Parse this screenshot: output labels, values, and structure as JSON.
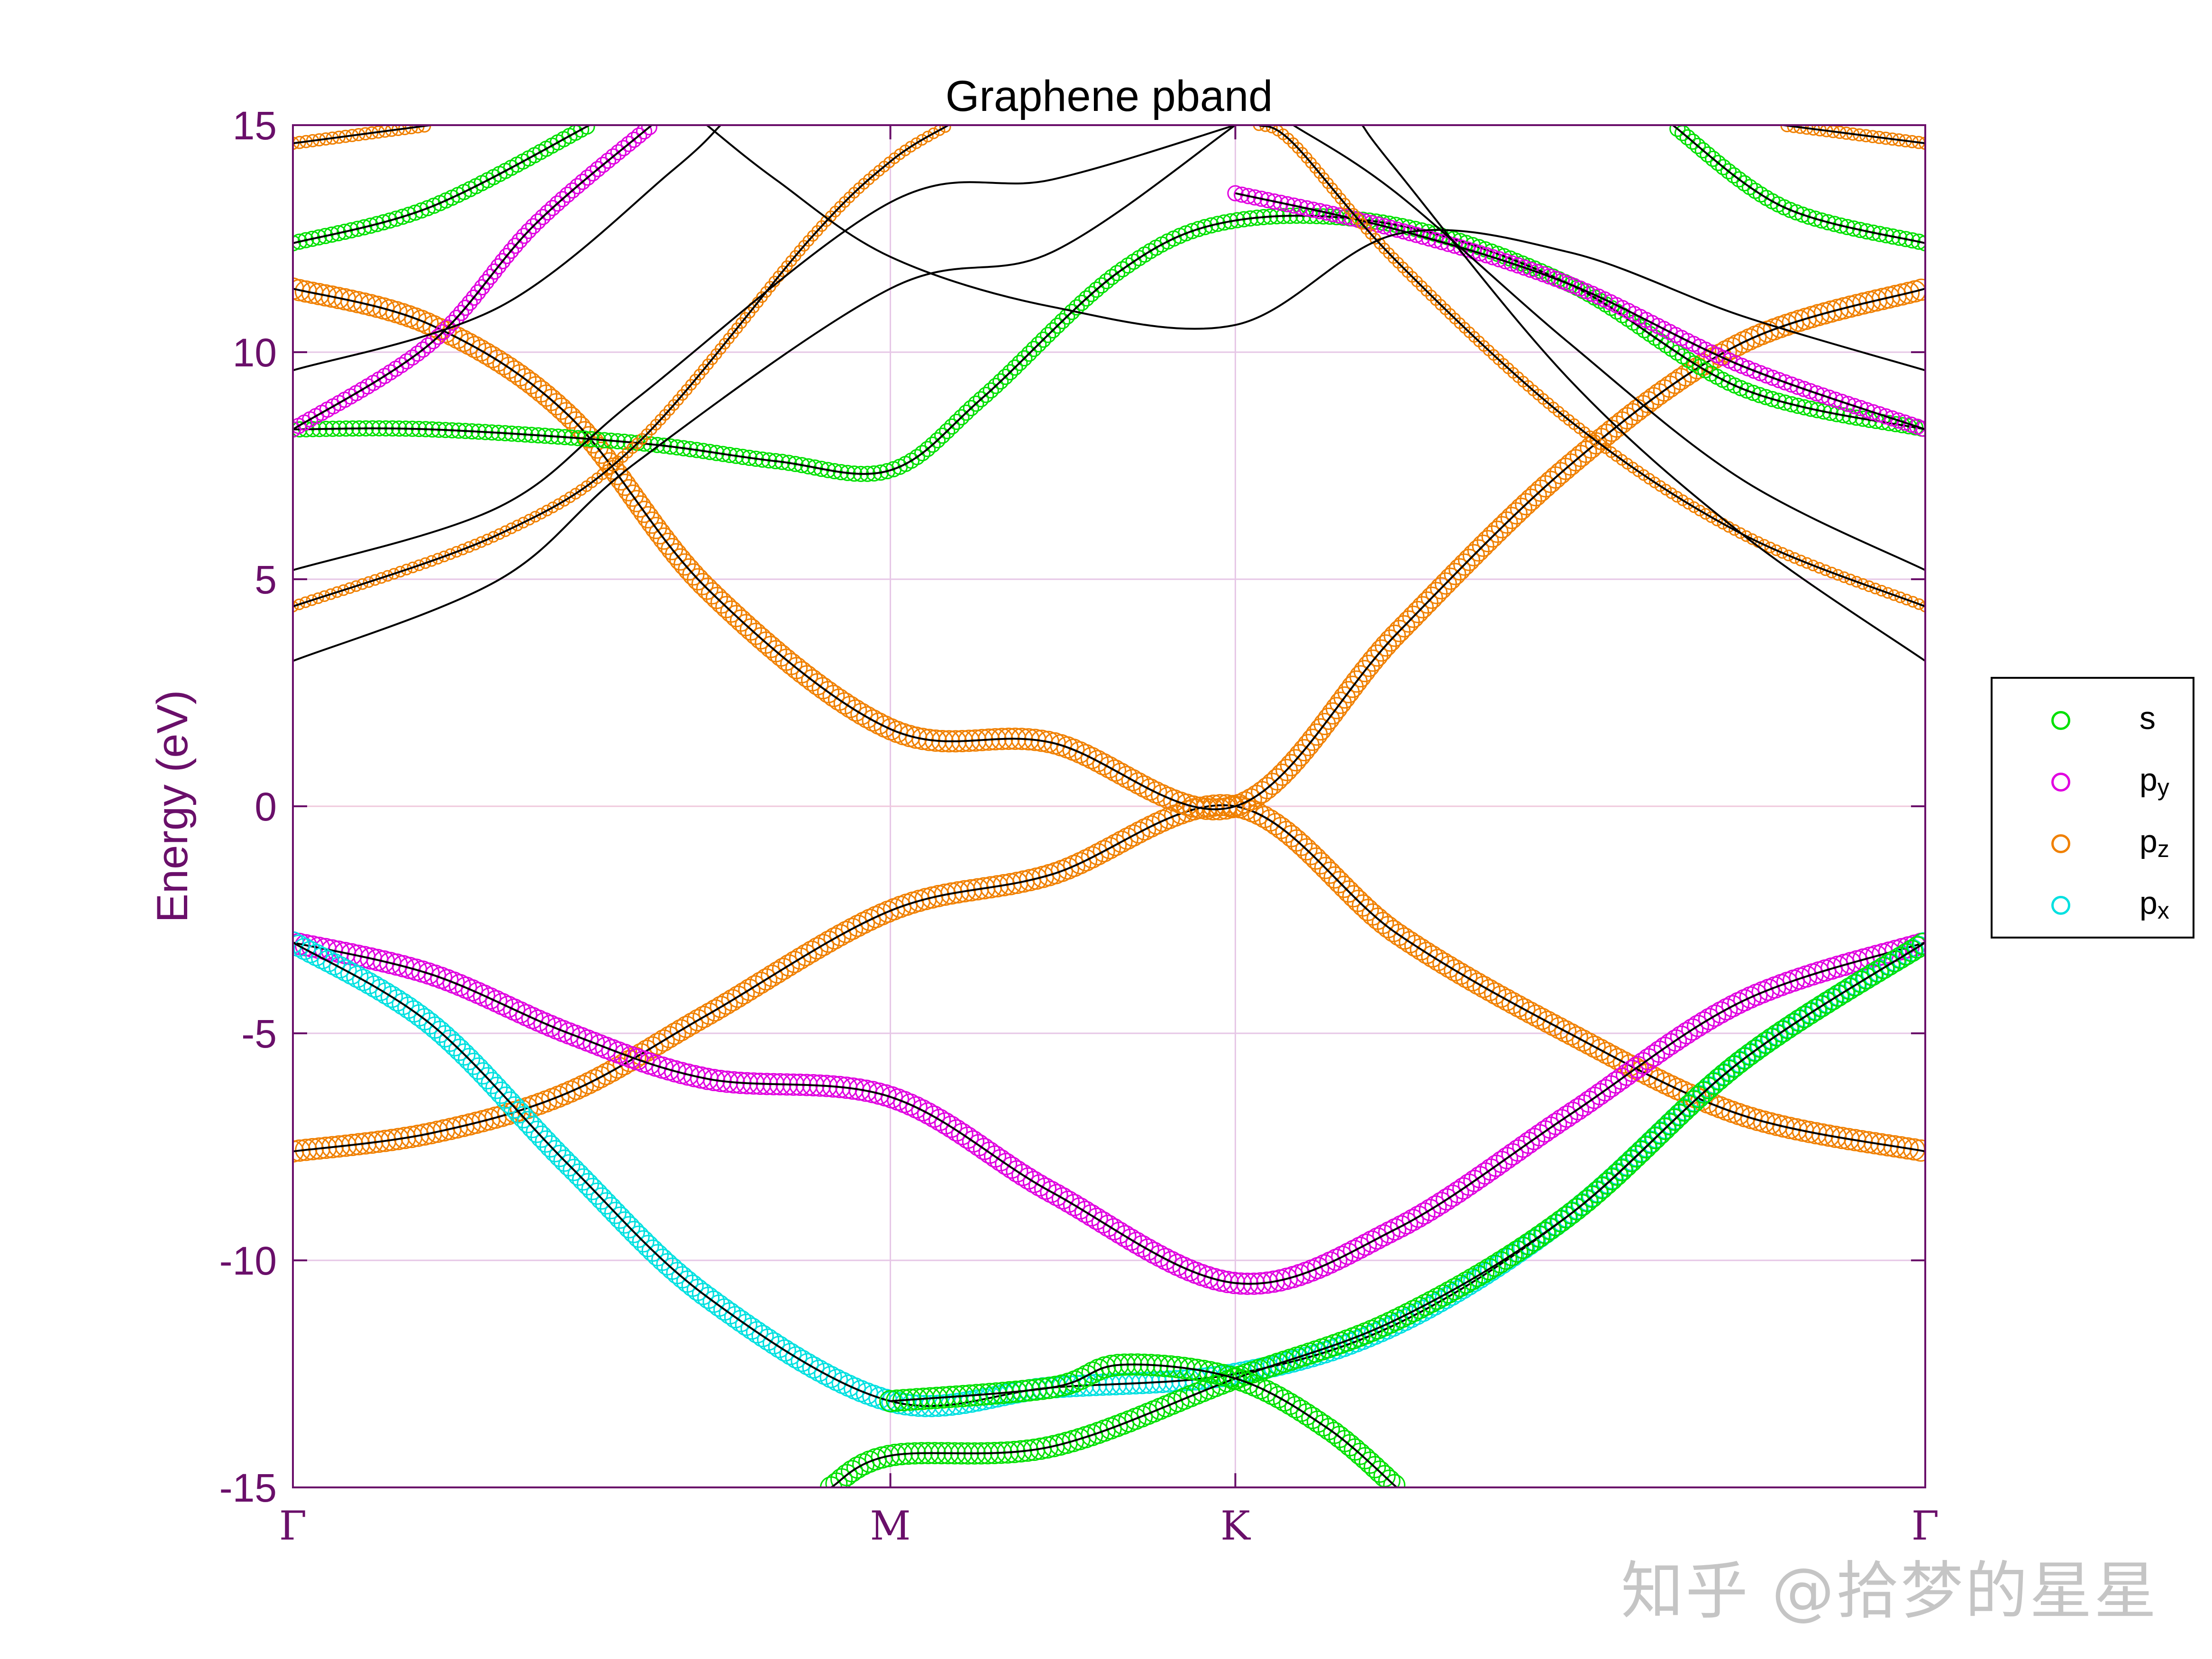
{
  "chart_data": {
    "type": "line",
    "title": "Graphene pband",
    "xlabel": "",
    "ylabel": "Energy (eV)",
    "ylim": [
      -15,
      15
    ],
    "yticks": [
      -15,
      -10,
      -5,
      0,
      5,
      10,
      15
    ],
    "xticks": [
      {
        "label": "Γ",
        "x": 0
      },
      {
        "label": "M",
        "x": 0.866
      },
      {
        "label": "K",
        "x": 1.366
      },
      {
        "label": "Γ",
        "x": 2.366
      }
    ],
    "xlim": [
      0,
      2.366
    ],
    "grid": true,
    "legend_position": "outside-right",
    "colors": {
      "axis": "#6a0f6a",
      "band": "#000000",
      "grid": "#e6c6e6",
      "zero_line": "#f0c8dc"
    },
    "series": [
      {
        "name": "s",
        "color": "#00e000"
      },
      {
        "name": "p",
        "subscript": "y",
        "color": "#e000e0"
      },
      {
        "name": "p",
        "subscript": "z",
        "color": "#f08000"
      },
      {
        "name": "p",
        "subscript": "x",
        "color": "#00e0e0"
      }
    ],
    "bands": [
      {
        "orbital": "p_z",
        "width": 1.0,
        "points": [
          [
            0,
            -7.6
          ],
          [
            0.2,
            -7.2
          ],
          [
            0.4,
            -6.3
          ],
          [
            0.6,
            -4.6
          ],
          [
            0.866,
            -2.3
          ],
          [
            1.1,
            -1.5
          ],
          [
            1.366,
            0.0
          ],
          [
            1.6,
            -2.8
          ],
          [
            1.85,
            -5.0
          ],
          [
            2.1,
            -6.8
          ],
          [
            2.366,
            -7.6
          ]
        ]
      },
      {
        "orbital": "p_z",
        "width": 1.0,
        "points": [
          [
            0,
            11.4
          ],
          [
            0.2,
            10.6
          ],
          [
            0.4,
            8.6
          ],
          [
            0.6,
            4.8
          ],
          [
            0.866,
            1.7
          ],
          [
            1.1,
            1.4
          ],
          [
            1.366,
            0.0
          ],
          [
            1.6,
            3.8
          ],
          [
            1.85,
            7.5
          ],
          [
            2.1,
            10.2
          ],
          [
            2.366,
            11.4
          ]
        ]
      },
      {
        "orbital": "p_y",
        "width": 1.0,
        "points": [
          [
            0,
            -3.0
          ],
          [
            0.2,
            -3.7
          ],
          [
            0.4,
            -5.0
          ],
          [
            0.6,
            -6.0
          ],
          [
            0.866,
            -6.4
          ],
          [
            1.1,
            -8.5
          ],
          [
            1.366,
            -10.5
          ],
          [
            1.6,
            -9.3
          ],
          [
            1.85,
            -6.8
          ],
          [
            2.1,
            -4.3
          ],
          [
            2.366,
            -3.0
          ]
        ]
      },
      {
        "orbital": "p_x",
        "width": 1.0,
        "points": [
          [
            0,
            -3.0
          ],
          [
            0.2,
            -4.8
          ],
          [
            0.4,
            -7.9
          ],
          [
            0.6,
            -10.8
          ],
          [
            0.866,
            -13.1
          ],
          [
            1.1,
            -12.8
          ],
          [
            1.366,
            -12.5
          ],
          [
            1.6,
            -11.4
          ],
          [
            1.85,
            -9.0
          ],
          [
            2.1,
            -5.6
          ],
          [
            2.366,
            -3.0
          ]
        ]
      },
      {
        "orbital": "s",
        "width": 1.0,
        "points": [
          [
            0.78,
            -15.0
          ],
          [
            0.866,
            -14.3
          ],
          [
            1.1,
            -14.1
          ],
          [
            1.366,
            -12.6
          ],
          [
            1.6,
            -11.3
          ],
          [
            1.85,
            -9.0
          ],
          [
            2.1,
            -5.6
          ],
          [
            2.366,
            -3.0
          ]
        ]
      },
      {
        "orbital": "s",
        "width": 1.0,
        "points": [
          [
            0.866,
            -13.1
          ],
          [
            1.1,
            -12.8
          ],
          [
            1.2,
            -12.3
          ],
          [
            1.366,
            -12.6
          ],
          [
            1.5,
            -13.7
          ],
          [
            1.6,
            -15.0
          ]
        ]
      },
      {
        "orbital": "s",
        "width": 0.6,
        "points": [
          [
            0,
            8.3
          ],
          [
            0.2,
            8.3
          ],
          [
            0.5,
            8.0
          ],
          [
            0.7,
            7.6
          ],
          [
            0.866,
            7.4
          ],
          [
            1.0,
            9.0
          ],
          [
            1.2,
            11.8
          ],
          [
            1.366,
            12.9
          ],
          [
            1.6,
            12.8
          ],
          [
            1.85,
            11.5
          ],
          [
            2.1,
            9.2
          ],
          [
            2.366,
            8.3
          ]
        ]
      },
      {
        "orbital": "p_y",
        "width": 0.6,
        "points": [
          [
            0,
            8.3
          ],
          [
            0.2,
            10.2
          ],
          [
            0.35,
            12.8
          ],
          [
            0.52,
            15.0
          ]
        ]
      },
      {
        "orbital": "p_y",
        "width": 0.6,
        "points": [
          [
            1.366,
            13.5
          ],
          [
            1.6,
            12.7
          ],
          [
            1.85,
            11.5
          ],
          [
            2.1,
            9.7
          ],
          [
            2.366,
            8.3
          ]
        ]
      },
      {
        "orbital": "s",
        "width": 0.6,
        "points": [
          [
            0,
            12.4
          ],
          [
            0.2,
            13.2
          ],
          [
            0.43,
            15.0
          ]
        ]
      },
      {
        "orbital": "s",
        "width": 0.6,
        "points": [
          [
            2.366,
            12.4
          ],
          [
            2.16,
            13.2
          ],
          [
            2.0,
            15.0
          ]
        ]
      },
      {
        "orbital": "p_z",
        "width": 0.4,
        "points": [
          [
            0,
            14.6
          ],
          [
            0.2,
            15.0
          ]
        ]
      },
      {
        "orbital": "p_z",
        "width": 0.4,
        "points": [
          [
            2.366,
            14.6
          ],
          [
            2.16,
            15.0
          ]
        ]
      },
      {
        "orbital": "p_z",
        "width": 0.3,
        "points": [
          [
            0,
            4.4
          ],
          [
            0.3,
            6.0
          ],
          [
            0.5,
            8.0
          ],
          [
            0.75,
            12.5
          ],
          [
            0.866,
            14.2
          ],
          [
            0.95,
            15.0
          ]
        ]
      },
      {
        "orbital": "p_z",
        "width": 0.3,
        "points": [
          [
            2.366,
            4.4
          ],
          [
            2.1,
            6.0
          ],
          [
            1.85,
            8.5
          ],
          [
            1.6,
            12.0
          ],
          [
            1.45,
            14.6
          ],
          [
            1.4,
            15.0
          ]
        ]
      },
      {
        "orbital": "none",
        "width": 0.0,
        "points": [
          [
            0,
            3.2
          ],
          [
            0.3,
            5.0
          ],
          [
            0.5,
            7.6
          ],
          [
            0.866,
            11.4
          ],
          [
            1.1,
            12.2
          ],
          [
            1.366,
            15.0
          ]
        ]
      },
      {
        "orbital": "none",
        "width": 0.0,
        "points": [
          [
            0,
            5.2
          ],
          [
            0.3,
            6.6
          ],
          [
            0.5,
            9.0
          ],
          [
            0.866,
            13.3
          ],
          [
            1.1,
            13.8
          ],
          [
            1.366,
            15.0
          ]
        ]
      },
      {
        "orbital": "none",
        "width": 0.0,
        "points": [
          [
            0,
            9.6
          ],
          [
            0.3,
            11.0
          ],
          [
            0.55,
            14.0
          ],
          [
            0.62,
            15.0
          ]
        ]
      },
      {
        "orbital": "none",
        "width": 0.0,
        "points": [
          [
            2.366,
            3.2
          ],
          [
            2.1,
            6.0
          ],
          [
            1.85,
            9.4
          ],
          [
            1.6,
            14.0
          ],
          [
            1.55,
            15.0
          ]
        ]
      },
      {
        "orbital": "none",
        "width": 0.0,
        "points": [
          [
            2.366,
            5.2
          ],
          [
            2.1,
            7.2
          ],
          [
            1.85,
            10.2
          ],
          [
            1.6,
            13.5
          ],
          [
            1.45,
            15.0
          ]
        ]
      },
      {
        "orbital": "none",
        "width": 0.0,
        "points": [
          [
            2.366,
            9.6
          ],
          [
            2.1,
            10.8
          ],
          [
            1.85,
            12.2
          ],
          [
            1.6,
            12.6
          ],
          [
            1.366,
            10.6
          ],
          [
            1.1,
            11.0
          ],
          [
            0.866,
            12.1
          ],
          [
            0.7,
            13.8
          ],
          [
            0.6,
            15.0
          ]
        ]
      }
    ]
  },
  "watermark": "知乎 @拾梦的星星"
}
